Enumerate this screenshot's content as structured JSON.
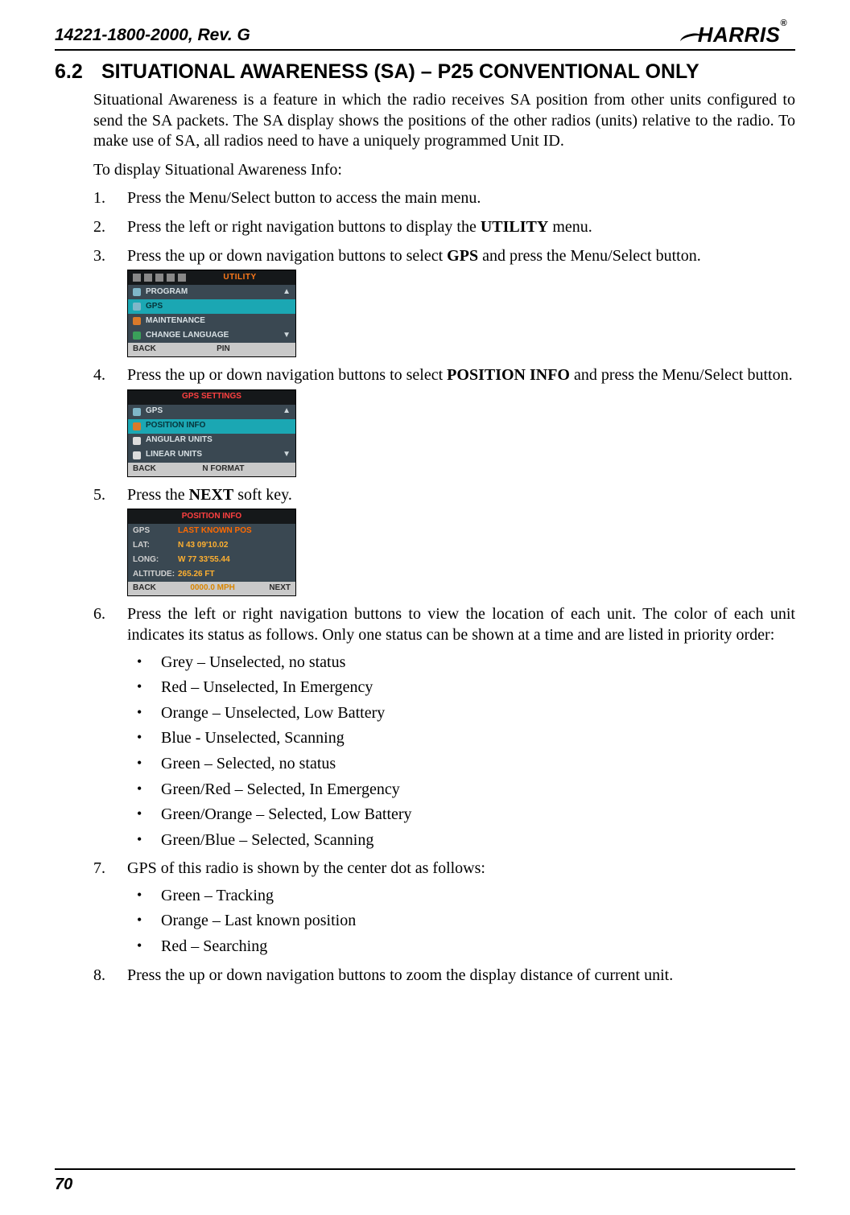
{
  "doc": {
    "id": "14221-1800-2000, Rev. G",
    "logo_text": "HARRIS",
    "page_number": "70"
  },
  "section": {
    "number": "6.2",
    "title": "SITUATIONAL AWARENESS (SA) – P25 CONVENTIONAL ONLY"
  },
  "intro_para": "Situational Awareness is a feature in which the radio receives SA position from other units configured to send the SA packets. The SA display shows the positions of the other radios (units) relative to the radio. To make use of SA, all radios need to have a uniquely programmed Unit ID.",
  "intro_lead": "To display Situational Awareness Info:",
  "steps": {
    "s1": "Press the Menu/Select button to access the main menu.",
    "s2a": "Press the left or right navigation buttons to display the ",
    "s2b": "UTILITY",
    "s2c": " menu.",
    "s3a": "Press the up or down navigation buttons to select ",
    "s3b": "GPS",
    "s3c": " and press the Menu/Select button.",
    "s4a": "Press the up or down navigation buttons to select ",
    "s4b": "POSITION INFO",
    "s4c": " and press the Menu/Select button.",
    "s5a": "Press the ",
    "s5b": "NEXT",
    "s5c": " soft key.",
    "s6": "Press the left or right navigation buttons to view the location of each unit. The color of each unit indicates its status as follows. Only one status can be shown at a time and are listed in priority order:",
    "s7": "GPS of this radio is shown by the center dot as follows:",
    "s8": "Press the up or down navigation buttons to zoom the display distance of current unit."
  },
  "bullets6": [
    "Grey – Unselected, no status",
    "Red – Unselected, In Emergency",
    "Orange – Unselected, Low Battery",
    "Blue - Unselected, Scanning",
    "Green – Selected, no status",
    "Green/Red – Selected, In Emergency",
    "Green/Orange – Selected, Low Battery",
    "Green/Blue – Selected, Scanning"
  ],
  "bullets7": [
    "Green – Tracking",
    "Orange – Last known position",
    "Red – Searching"
  ],
  "screen1": {
    "title": "UTILITY",
    "rows": [
      "PROGRAM",
      "GPS",
      "MAINTENANCE",
      "CHANGE LANGUAGE"
    ],
    "footer_left": "BACK",
    "footer_mid": "PIN"
  },
  "screen2": {
    "title": "GPS SETTINGS",
    "rows": [
      "GPS",
      "POSITION INFO",
      "ANGULAR UNITS",
      "LINEAR UNITS"
    ],
    "footer_left": "BACK",
    "footer_mid": "N FORMAT"
  },
  "screen3": {
    "title": "POSITION INFO",
    "rows": [
      {
        "label": "GPS",
        "value": "LAST KNOWN POS"
      },
      {
        "label": "LAT:",
        "value": "N 43 09'10.02"
      },
      {
        "label": "LONG:",
        "value": "W 77 33'55.44"
      },
      {
        "label": "ALTITUDE:",
        "value": "265.26 FT"
      }
    ],
    "footer_left": "BACK",
    "footer_mid": "0000.0 MPH",
    "footer_right": "NEXT"
  },
  "colors": {
    "text": "#000000",
    "background": "#ffffff",
    "rule": "#000000",
    "screen_bg": "#2b3a42",
    "screen_sel": "#1ba7b3",
    "screen_header": "#15181a",
    "orange_text": "#ff7a1a",
    "red_text": "#ff4040",
    "yellow_text": "#ffb030",
    "footer_bg": "#c9c9c9"
  }
}
